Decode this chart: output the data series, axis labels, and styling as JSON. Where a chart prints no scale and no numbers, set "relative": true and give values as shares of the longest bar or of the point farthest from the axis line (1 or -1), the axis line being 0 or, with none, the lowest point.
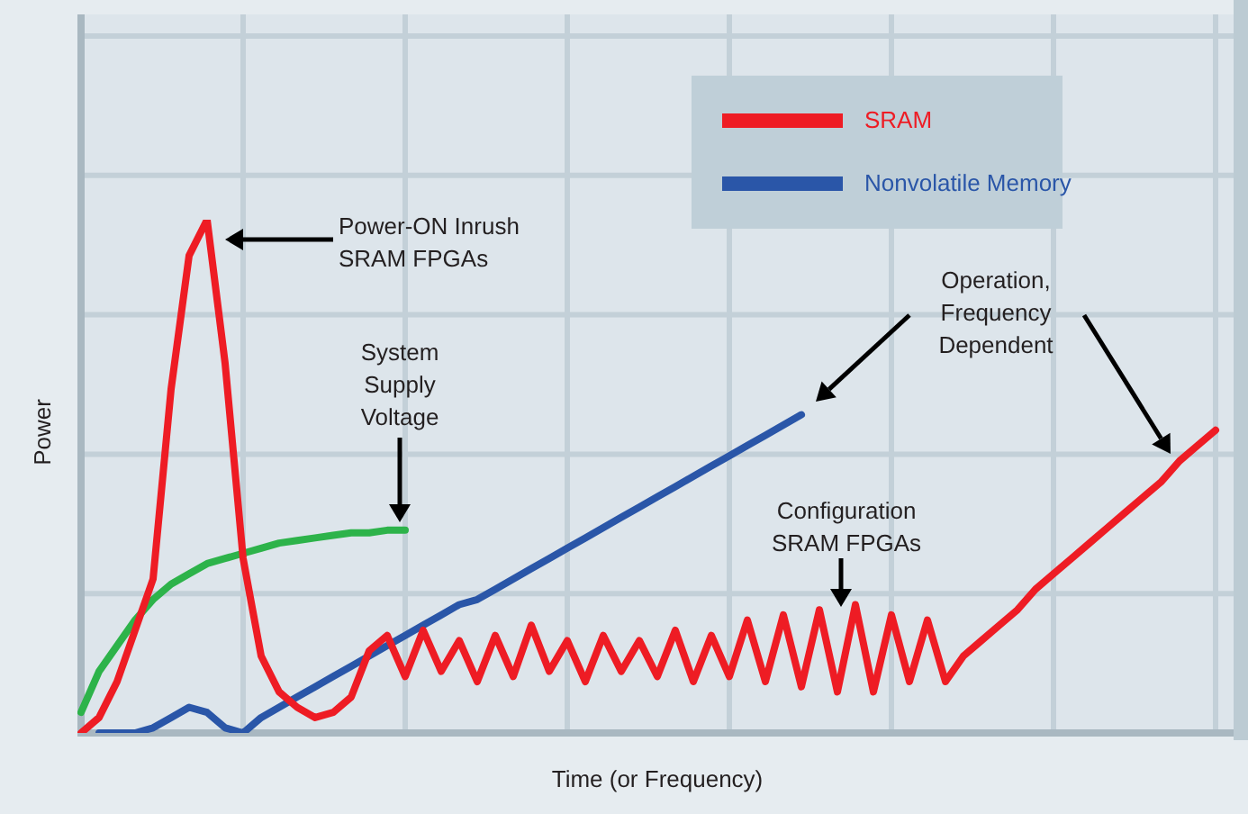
{
  "chart_data": {
    "type": "line",
    "relative": true,
    "xlabel": "Time (or Frequency)",
    "ylabel": "Power",
    "grid": true,
    "legend": "top right",
    "marker": "none",
    "line_style": "solid",
    "categories": [
      null,
      null,
      null,
      null,
      null,
      null,
      null,
      null,
      null,
      null,
      null,
      null,
      null,
      null,
      null,
      null,
      null,
      null,
      null,
      null,
      null,
      null,
      null,
      null,
      null,
      null,
      null,
      null,
      null,
      null,
      null,
      null,
      null,
      null,
      null,
      null,
      null,
      null,
      null,
      null,
      null,
      null,
      null,
      null,
      null,
      null,
      null,
      null,
      null,
      null,
      null,
      null,
      null,
      null,
      null,
      null,
      null,
      null,
      null,
      null,
      null,
      null,
      null,
      null,
      null
    ],
    "series": [
      {
        "name": "SRAM",
        "color": "#ee1c24",
        "values": [
          0,
          0.03,
          0.1,
          0.2,
          0.3,
          0.67,
          0.93,
          1,
          0.72,
          0.34,
          0.15,
          0.08,
          0.05,
          0.03,
          0.04,
          0.07,
          0.16,
          0.19,
          0.11,
          0.2,
          0.12,
          0.18,
          0.1,
          0.19,
          0.11,
          0.21,
          0.12,
          0.18,
          0.1,
          0.19,
          0.12,
          0.18,
          0.11,
          0.2,
          0.1,
          0.19,
          0.11,
          0.22,
          0.1,
          0.23,
          0.09,
          0.24,
          0.08,
          0.25,
          0.08,
          0.23,
          0.1,
          0.22,
          0.1,
          0.15,
          0.18,
          0.21,
          0.24,
          0.28,
          0.31,
          0.34,
          0.37,
          0.4,
          0.43,
          0.46,
          0.49,
          0.53,
          0.56,
          0.59,
          null
        ]
      },
      {
        "name": "Nonvolatile Memory",
        "color": "#2a56a8",
        "values": [
          null,
          0,
          0,
          0,
          0.01,
          0.03,
          0.05,
          0.04,
          0.01,
          0,
          0.03,
          0.05,
          0.07,
          0.09,
          0.11,
          0.13,
          0.15,
          0.17,
          0.19,
          0.21,
          0.23,
          0.25,
          0.26,
          0.28,
          0.3,
          0.32,
          0.34,
          0.36,
          0.38,
          0.4,
          0.42,
          0.44,
          0.46,
          0.48,
          0.5,
          0.52,
          0.54,
          0.56,
          0.58,
          0.6,
          0.62,
          null,
          null,
          null,
          null,
          null,
          null,
          null,
          null,
          null,
          null,
          null,
          null,
          null,
          null,
          null,
          null,
          null,
          null,
          null,
          null,
          null,
          null,
          null,
          null
        ]
      },
      {
        "color": "#2db34a",
        "values": [
          0.04,
          0.12,
          0.17,
          0.22,
          0.26,
          0.29,
          0.31,
          0.33,
          0.34,
          0.35,
          0.36,
          0.37,
          0.375,
          0.38,
          0.385,
          0.39,
          0.39,
          0.395,
          0.395,
          null,
          null,
          null,
          null,
          null,
          null,
          null,
          null,
          null,
          null,
          null,
          null,
          null,
          null,
          null,
          null,
          null,
          null,
          null,
          null,
          null,
          null,
          null,
          null,
          null,
          null,
          null,
          null,
          null,
          null,
          null,
          null,
          null,
          null,
          null,
          null,
          null,
          null,
          null,
          null,
          null,
          null,
          null,
          null,
          null,
          null
        ]
      }
    ],
    "annotations": [
      "Power-ON Inrush\nSRAM FPGAs",
      "System\nSupply\nVoltage",
      "Operation,\nFrequency\nDependent",
      "Configuration\nSRAM FPGAs"
    ]
  }
}
